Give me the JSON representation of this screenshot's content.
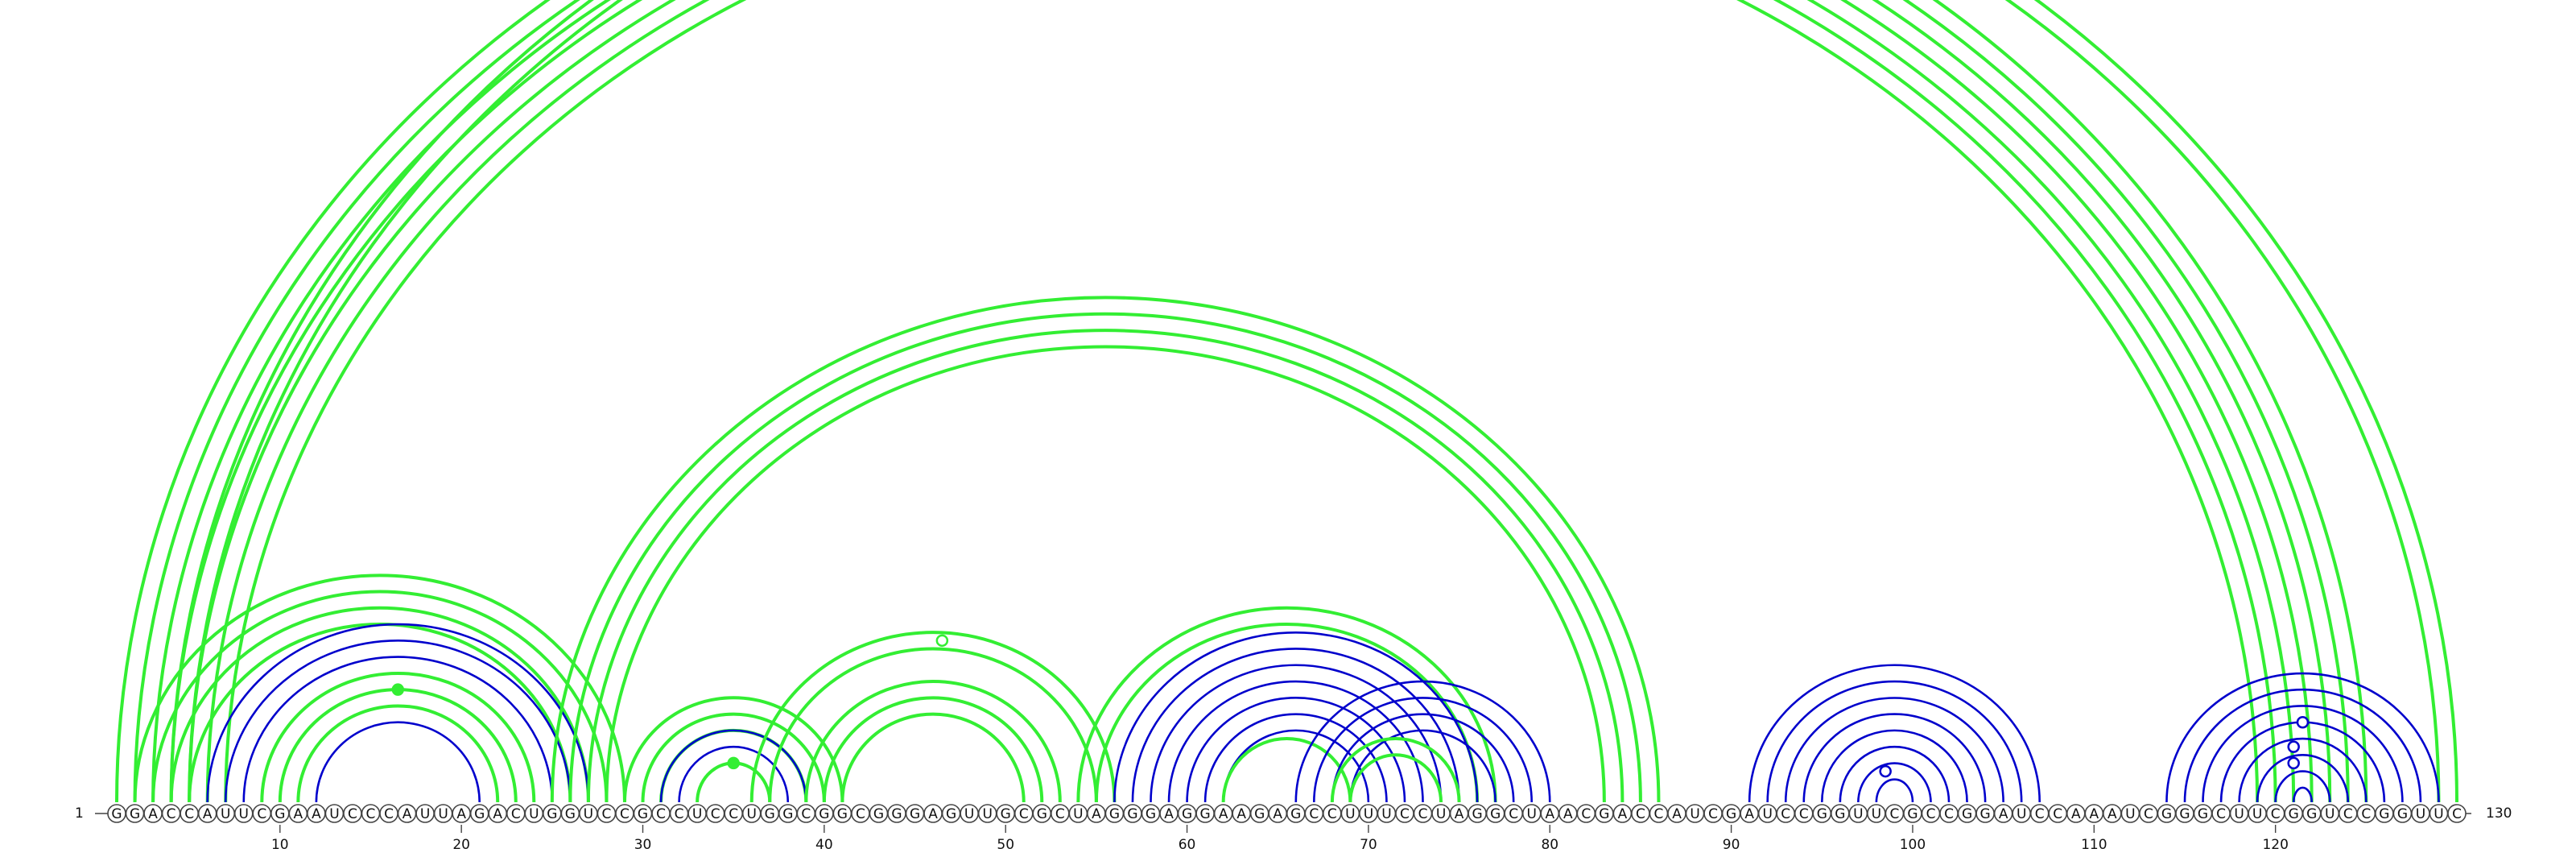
{
  "sequence": "GGACCAUUCGAAUCCCAUUAGACUGGUCCGCCUCCUGGCGGCGGGAGUUGCGCUAGGGAGGAAGAGCCUUUCCUAGGCUAACGACCAUCGAUCCGGUUCGCCGGAUCCAAAUCGGGCUUCGGUCCGGUUC",
  "start_label": "1",
  "end_label": "130",
  "tick_labels": [
    "10",
    "20",
    "30",
    "40",
    "50",
    "60",
    "70",
    "80",
    "90",
    "100",
    "110",
    "120"
  ],
  "colors": {
    "green": "#33ee33",
    "blue": "#0000cc"
  },
  "chart_data": {
    "type": "arc",
    "length": 130,
    "helices": [
      {
        "color": "green",
        "pairs": [
          [
            1,
            125
          ],
          [
            2,
            124
          ],
          [
            3,
            123
          ],
          [
            4,
            122
          ],
          [
            5,
            121
          ],
          [
            6,
            120
          ],
          [
            7,
            119
          ]
        ]
      },
      {
        "color": "green",
        "pairs": [
          [
            4,
            130
          ],
          [
            5,
            129
          ]
        ]
      },
      {
        "color": "green",
        "pairs": [
          [
            2,
            29
          ],
          [
            3,
            28
          ],
          [
            4,
            27
          ],
          [
            5,
            26
          ]
        ]
      },
      {
        "color": "blue",
        "pairs": [
          [
            6,
            27
          ],
          [
            7,
            26
          ],
          [
            8,
            25
          ],
          [
            9,
            24
          ],
          [
            10,
            23
          ],
          [
            11,
            22
          ],
          [
            12,
            21
          ]
        ]
      },
      {
        "color": "green",
        "pairs": [
          [
            9,
            24
          ],
          [
            10,
            23
          ],
          [
            11,
            22
          ]
        ]
      },
      {
        "color": "green",
        "pairs": [
          [
            25,
            86
          ],
          [
            26,
            85
          ],
          [
            27,
            84
          ],
          [
            28,
            83
          ]
        ]
      },
      {
        "color": "green",
        "pairs": [
          [
            29,
            41
          ],
          [
            30,
            40
          ],
          [
            31,
            39
          ]
        ]
      },
      {
        "color": "blue",
        "pairs": [
          [
            31,
            39
          ],
          [
            32,
            38
          ],
          [
            33,
            37
          ]
        ]
      },
      {
        "color": "green",
        "pairs": [
          [
            33,
            37
          ]
        ]
      },
      {
        "color": "green",
        "pairs": [
          [
            36,
            56
          ],
          [
            37,
            55
          ]
        ]
      },
      {
        "color": "green",
        "pairs": [
          [
            39,
            53
          ],
          [
            40,
            52
          ],
          [
            41,
            51
          ]
        ]
      },
      {
        "color": "green",
        "pairs": [
          [
            54,
            77
          ],
          [
            55,
            76
          ]
        ]
      },
      {
        "color": "blue",
        "pairs": [
          [
            56,
            76
          ],
          [
            57,
            75
          ],
          [
            58,
            74
          ],
          [
            59,
            73
          ],
          [
            60,
            72
          ],
          [
            61,
            71
          ],
          [
            62,
            70
          ]
        ]
      },
      {
        "color": "green",
        "pairs": [
          [
            62,
            69
          ]
        ]
      },
      {
        "color": "blue",
        "pairs": [
          [
            66,
            80
          ],
          [
            67,
            79
          ],
          [
            68,
            78
          ],
          [
            69,
            77
          ]
        ]
      },
      {
        "color": "green",
        "pairs": [
          [
            68,
            75
          ],
          [
            69,
            74
          ]
        ]
      },
      {
        "color": "blue",
        "pairs": [
          [
            91,
            107
          ],
          [
            92,
            106
          ],
          [
            93,
            105
          ],
          [
            94,
            104
          ],
          [
            95,
            103
          ],
          [
            96,
            102
          ],
          [
            97,
            101
          ],
          [
            98,
            100
          ]
        ]
      },
      {
        "color": "blue",
        "pairs": [
          [
            114,
            129
          ],
          [
            115,
            128
          ],
          [
            116,
            127
          ],
          [
            117,
            126
          ],
          [
            118,
            125
          ],
          [
            119,
            124
          ],
          [
            120,
            123
          ],
          [
            121,
            122
          ]
        ]
      }
    ],
    "markers": [
      {
        "pair": [
          1,
          130
        ],
        "color": "green",
        "filled": false
      },
      {
        "pair": [
          10,
          23
        ],
        "color": "green",
        "filled": true
      },
      {
        "pair": [
          37,
          56
        ],
        "color": "green",
        "filled": false
      },
      {
        "pair": [
          33,
          37
        ],
        "color": "green",
        "filled": true
      },
      {
        "pair": [
          97,
          100
        ],
        "color": "blue",
        "filled": false
      },
      {
        "pair": [
          117,
          126
        ],
        "color": "blue",
        "filled": false
      },
      {
        "pair": [
          118,
          124
        ],
        "color": "blue",
        "filled": false
      },
      {
        "pair": [
          119,
          123
        ],
        "color": "blue",
        "filled": false
      }
    ]
  }
}
